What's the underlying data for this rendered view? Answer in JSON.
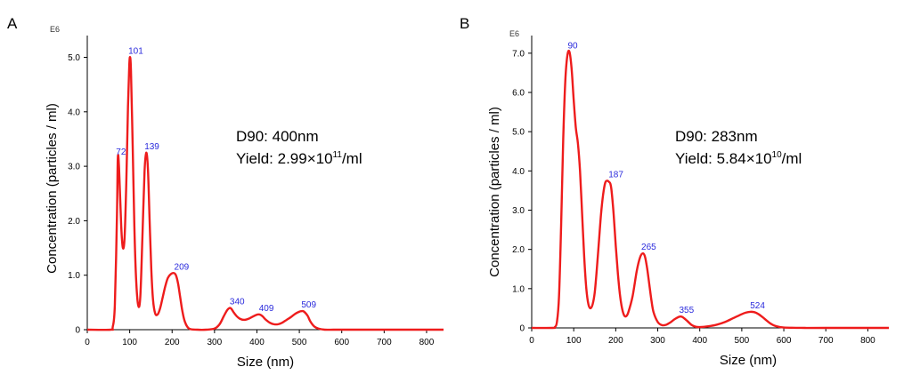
{
  "chart_data": [
    {
      "type": "line",
      "panel_label": "A",
      "exponent_label": "E6",
      "xlabel": "Size (nm)",
      "ylabel": "Concentration (particles / ml)",
      "xlim": [
        0,
        840
      ],
      "ylim": [
        0,
        5.4
      ],
      "x_ticks": [
        0,
        100,
        200,
        300,
        400,
        500,
        600,
        700,
        800
      ],
      "y_ticks": [
        0,
        1.0,
        2.0,
        3.0,
        4.0,
        5.0
      ],
      "y_tick_labels": [
        "0",
        "1.0",
        "2.0",
        "3.0",
        "4.0",
        "5.0"
      ],
      "grid": false,
      "color": "#ee1c1c",
      "series": [
        {
          "x": [
            0,
            55,
            60,
            65,
            70,
            72,
            75,
            80,
            84,
            88,
            92,
            96,
            99,
            101,
            103,
            107,
            111,
            115,
            120,
            125,
            130,
            135,
            139,
            143,
            147,
            151,
            155,
            160,
            166,
            172,
            178,
            184,
            190,
            197,
            204,
            209,
            214,
            219,
            224,
            230,
            240,
            260,
            280,
            300,
            312,
            322,
            330,
            336,
            340,
            345,
            352,
            360,
            370,
            380,
            390,
            398,
            404,
            409,
            414,
            420,
            430,
            440,
            450,
            460,
            470,
            480,
            490,
            500,
            505,
            509,
            514,
            520,
            526,
            535,
            545,
            560,
            580,
            600,
            650,
            700,
            750,
            800,
            840
          ],
          "y": [
            0,
            0,
            0.05,
            0.45,
            2.1,
            3.15,
            2.95,
            1.9,
            1.5,
            1.7,
            2.7,
            4.1,
            4.85,
            5.0,
            4.75,
            3.4,
            1.9,
            0.95,
            0.45,
            0.6,
            1.7,
            2.9,
            3.25,
            2.95,
            2.0,
            1.1,
            0.55,
            0.3,
            0.28,
            0.4,
            0.6,
            0.8,
            0.95,
            1.02,
            1.04,
            1.0,
            0.85,
            0.6,
            0.35,
            0.15,
            0.02,
            0,
            0,
            0.02,
            0.1,
            0.25,
            0.36,
            0.4,
            0.38,
            0.32,
            0.25,
            0.2,
            0.18,
            0.2,
            0.24,
            0.27,
            0.28,
            0.27,
            0.24,
            0.19,
            0.13,
            0.1,
            0.1,
            0.13,
            0.18,
            0.23,
            0.29,
            0.33,
            0.34,
            0.34,
            0.31,
            0.25,
            0.15,
            0.06,
            0.02,
            0,
            0,
            0,
            0,
            0,
            0,
            0,
            0
          ]
        }
      ],
      "peak_labels": [
        {
          "x": 72,
          "y": 3.15,
          "text": "72"
        },
        {
          "x": 101,
          "y": 5.0,
          "text": "101"
        },
        {
          "x": 139,
          "y": 3.25,
          "text": "139"
        },
        {
          "x": 209,
          "y": 1.04,
          "text": "209"
        },
        {
          "x": 340,
          "y": 0.4,
          "text": "340"
        },
        {
          "x": 409,
          "y": 0.28,
          "text": "409"
        },
        {
          "x": 509,
          "y": 0.34,
          "text": "509"
        }
      ],
      "annotation": {
        "line1": "D90: 400nm",
        "line2_prefix": "Yield: 2.99×10",
        "line2_exp": "11",
        "line2_suffix": "/ml"
      }
    },
    {
      "type": "line",
      "panel_label": "B",
      "exponent_label": "E6",
      "xlabel": "Size (nm)",
      "ylabel": "Concentration (particles / ml)",
      "xlim": [
        0,
        850
      ],
      "ylim": [
        0,
        7.45
      ],
      "x_ticks": [
        0,
        100,
        200,
        300,
        400,
        500,
        600,
        700,
        800
      ],
      "y_ticks": [
        0,
        1.0,
        2.0,
        3.0,
        4.0,
        5.0,
        6.0,
        7.0
      ],
      "y_tick_labels": [
        "0",
        "1.0",
        "2.0",
        "3.0",
        "4.0",
        "5.0",
        "6.0",
        "7.0"
      ],
      "grid": false,
      "color": "#ee1c1c",
      "series": [
        {
          "x": [
            0,
            50,
            55,
            60,
            65,
            70,
            75,
            80,
            85,
            90,
            95,
            100,
            105,
            110,
            115,
            120,
            125,
            130,
            135,
            140,
            145,
            150,
            155,
            160,
            165,
            170,
            175,
            180,
            184,
            187,
            190,
            195,
            200,
            205,
            210,
            215,
            220,
            225,
            230,
            240,
            250,
            258,
            265,
            270,
            275,
            280,
            285,
            290,
            300,
            310,
            320,
            330,
            340,
            350,
            355,
            360,
            370,
            380,
            390,
            400,
            420,
            440,
            460,
            480,
            500,
            510,
            520,
            530,
            540,
            550,
            560,
            570,
            580,
            600,
            650,
            700,
            750,
            800,
            850
          ],
          "y": [
            0,
            0,
            0.02,
            0.15,
            0.8,
            2.6,
            4.8,
            6.3,
            6.95,
            7.03,
            6.6,
            5.8,
            5.1,
            4.7,
            4.0,
            2.9,
            1.8,
            1.0,
            0.6,
            0.5,
            0.6,
            0.9,
            1.5,
            2.2,
            2.9,
            3.4,
            3.7,
            3.75,
            3.72,
            3.68,
            3.5,
            2.9,
            2.1,
            1.4,
            0.85,
            0.5,
            0.32,
            0.3,
            0.4,
            0.8,
            1.45,
            1.8,
            1.9,
            1.8,
            1.5,
            1.1,
            0.7,
            0.4,
            0.15,
            0.07,
            0.08,
            0.14,
            0.22,
            0.28,
            0.29,
            0.27,
            0.18,
            0.08,
            0.03,
            0.02,
            0.04,
            0.08,
            0.15,
            0.25,
            0.35,
            0.39,
            0.41,
            0.4,
            0.35,
            0.27,
            0.18,
            0.1,
            0.05,
            0.01,
            0,
            0,
            0,
            0,
            0
          ]
        }
      ],
      "peak_labels": [
        {
          "x": 90,
          "y": 7.03,
          "text": "90"
        },
        {
          "x": 187,
          "y": 3.75,
          "text": "187"
        },
        {
          "x": 265,
          "y": 1.9,
          "text": "265"
        },
        {
          "x": 355,
          "y": 0.29,
          "text": "355"
        },
        {
          "x": 524,
          "y": 0.41,
          "text": "524"
        }
      ],
      "annotation": {
        "line1": "D90: 283nm",
        "line2_prefix": "Yield: 5.84×10",
        "line2_exp": "10",
        "line2_suffix": "/ml"
      }
    }
  ]
}
